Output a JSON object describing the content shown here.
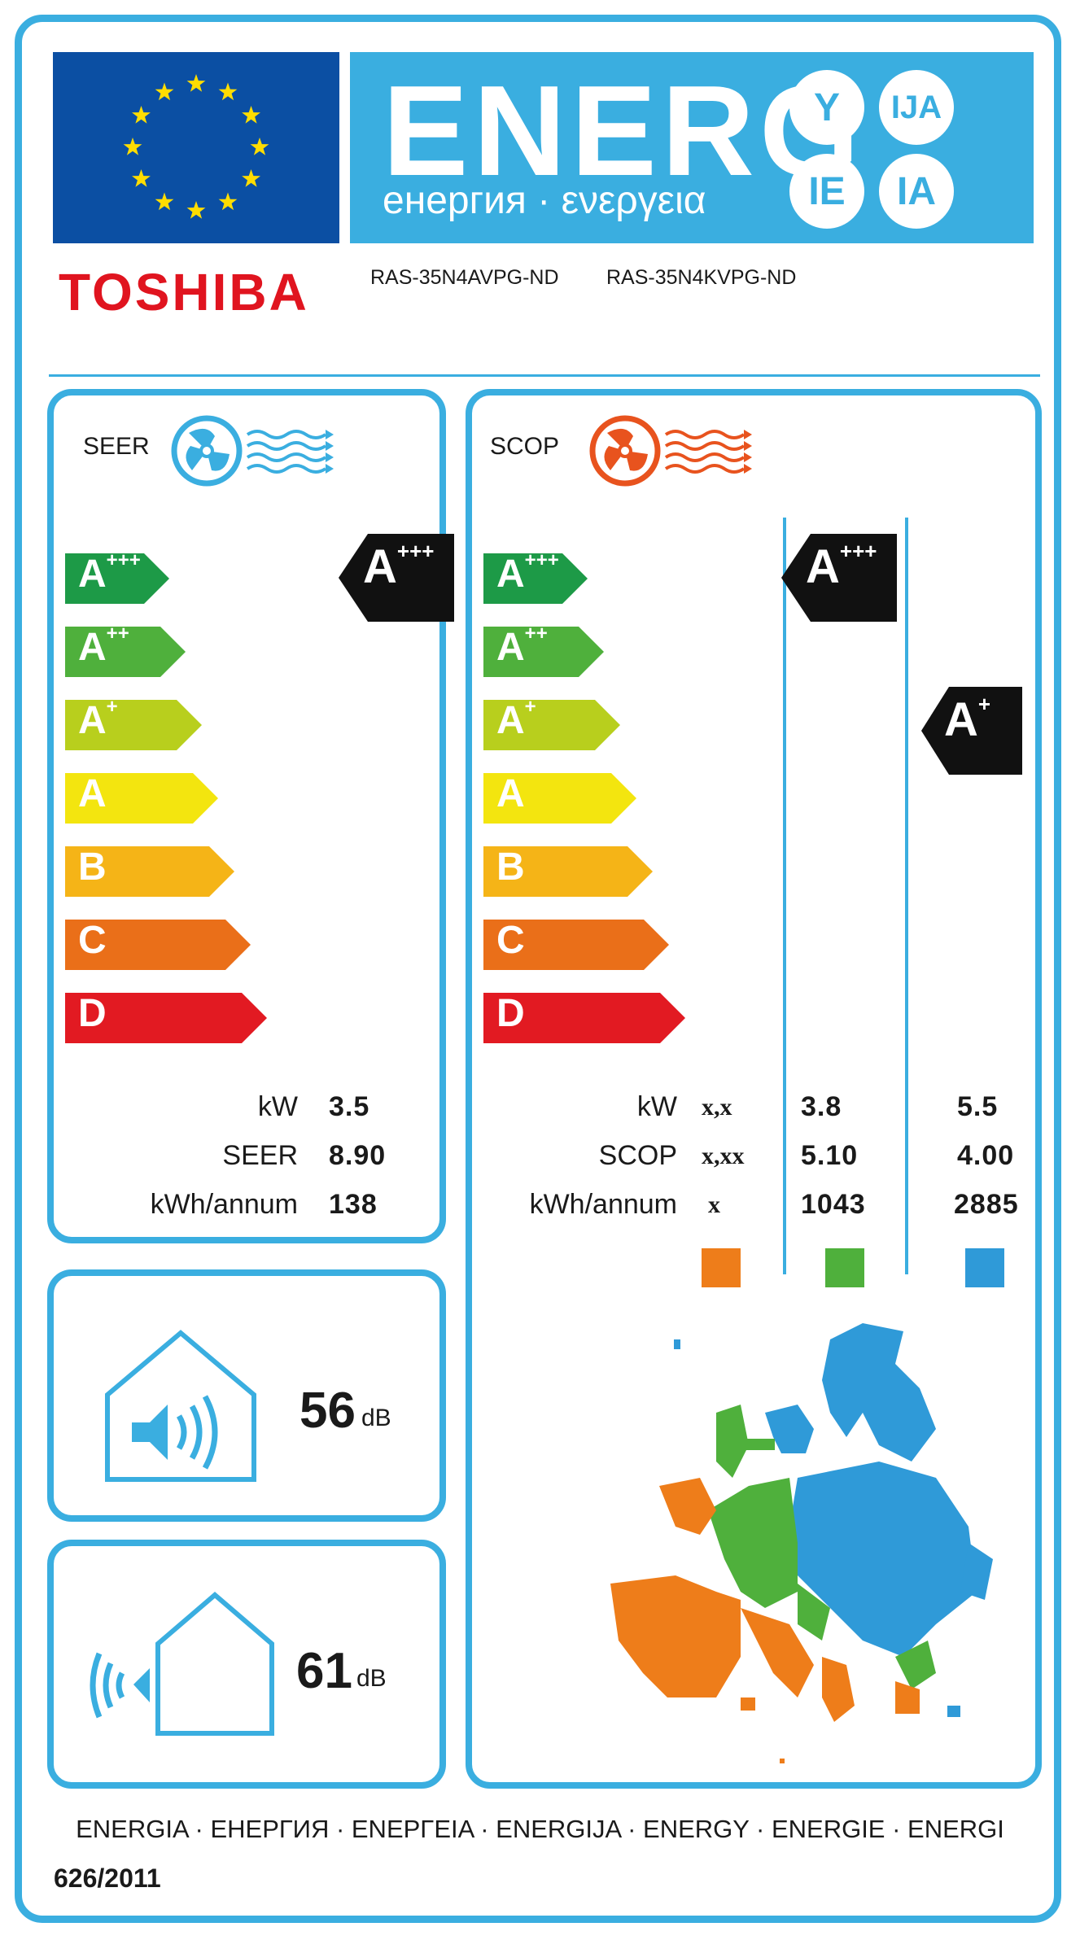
{
  "header": {
    "energy_word": "ENERG",
    "energy_sub": "енергия · ενεργεια",
    "suffixes": [
      "Y",
      "IJA",
      "IE",
      "IA"
    ],
    "brand": "TOSHIBA",
    "models": [
      "RAS-35N4AVPG-ND",
      "RAS-35N4KVPG-ND"
    ]
  },
  "cooling": {
    "title": "SEER",
    "classes": [
      {
        "base": "A",
        "sup": "+++",
        "color": "#1d9a47"
      },
      {
        "base": "A",
        "sup": "++",
        "color": "#4fb03c"
      },
      {
        "base": "A",
        "sup": "+",
        "color": "#b8cf1d"
      },
      {
        "base": "A",
        "sup": "",
        "color": "#f3e50f"
      },
      {
        "base": "B",
        "sup": "",
        "color": "#f5b417"
      },
      {
        "base": "C",
        "sup": "",
        "color": "#ea6f19"
      },
      {
        "base": "D",
        "sup": "",
        "color": "#e21a22"
      }
    ],
    "rating": {
      "base": "A",
      "sup": "+++"
    },
    "labels": {
      "kw": "kW",
      "seer": "SEER",
      "annual": "kWh/annum"
    },
    "values": {
      "kw": "3.5",
      "seer": "8.90",
      "annual": "138"
    }
  },
  "heating": {
    "title": "SCOP",
    "classes": [
      {
        "base": "A",
        "sup": "+++",
        "color": "#1d9a47"
      },
      {
        "base": "A",
        "sup": "++",
        "color": "#4fb03c"
      },
      {
        "base": "A",
        "sup": "+",
        "color": "#b8cf1d"
      },
      {
        "base": "A",
        "sup": "",
        "color": "#f3e50f"
      },
      {
        "base": "B",
        "sup": "",
        "color": "#f5b417"
      },
      {
        "base": "C",
        "sup": "",
        "color": "#ea6f19"
      },
      {
        "base": "D",
        "sup": "",
        "color": "#e21a22"
      }
    ],
    "ratings": [
      {
        "zone": "average",
        "base": "A",
        "sup": "+++"
      },
      {
        "zone": "colder",
        "base": "A",
        "sup": "+"
      }
    ],
    "labels": {
      "kw": "kW",
      "scop": "SCOP",
      "annual": "kWh/annum"
    },
    "columns": [
      {
        "zone": "warmer",
        "kw": "x,x",
        "scop": "x,xx",
        "annual": "x",
        "color": "#ee7d1a"
      },
      {
        "zone": "average",
        "kw": "3.8",
        "scop": "5.10",
        "annual": "1043",
        "color": "#4fb03c"
      },
      {
        "zone": "colder",
        "kw": "5.5",
        "scop": "4.00",
        "annual": "2885",
        "color": "#2f9ad8"
      }
    ]
  },
  "noise": {
    "indoor": {
      "value": "56",
      "unit": "dB"
    },
    "outdoor": {
      "value": "61",
      "unit": "dB"
    }
  },
  "footer": {
    "languages": "ENERGIA · ЕНЕРГИЯ · ΕΝΕΡΓΕΙΑ · ENERGIJA · ENERGY · ENERGIE · ENERGI",
    "regulation": "626/2011"
  },
  "colors": {
    "accent": "#3aaee0",
    "eu_blue": "#0b4fa3",
    "eu_star": "#ffdd00",
    "brand_red": "#e0141f"
  }
}
